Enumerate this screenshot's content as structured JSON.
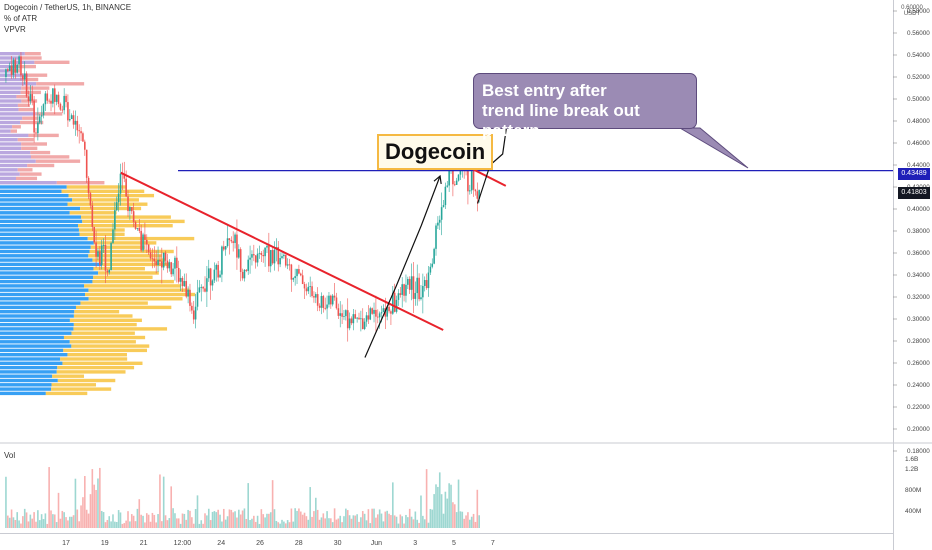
{
  "header": {
    "symbol_line": "Dogecoin / TetherUS, 1h, BINANCE",
    "indicator_1": "% of ATR",
    "indicator_2": "VPVR",
    "volume_label": "Vol"
  },
  "annotations": {
    "title_box": "Dogecoin",
    "callout": [
      "Best entry after",
      "trend line break out pattern"
    ]
  },
  "price_tags": {
    "level": "0.43489",
    "last": "0.41803"
  },
  "colors": {
    "up": "#26a69a",
    "down": "#ef5350",
    "horizontal_level": "#1f1fb8",
    "trend_line": "#e8232c",
    "vp_blue": "#2196f3",
    "vp_yellow": "#f7c23c",
    "vp_pink": "#ef9a9a",
    "vp_purple": "#b39ddb",
    "callout_bg": "#9b8bb4",
    "title_box_border": "#f5b942"
  },
  "chart_data": {
    "type": "candlestick",
    "title": "Dogecoin / TetherUS, 1h, BINANCE",
    "x_ticks": [
      "17",
      "19",
      "21",
      "12:00",
      "24",
      "26",
      "28",
      "30",
      "Jun",
      "3",
      "5",
      "7"
    ],
    "y_ticks": [
      "0.58000",
      "0.56000",
      "0.54000",
      "0.52000",
      "0.50000",
      "0.48000",
      "0.46000",
      "0.44000",
      "0.42000",
      "0.40000",
      "0.38000",
      "0.36000",
      "0.34000",
      "0.32000",
      "0.30000",
      "0.28000",
      "0.26000",
      "0.24000",
      "0.22000",
      "0.20000",
      "0.18000"
    ],
    "y_top_label": "USDT",
    "y_top_tick": "0.60000",
    "ylim": [
      0.18,
      0.6
    ],
    "volume_ticks": [
      "1.6B",
      "1.2B",
      "800M",
      "400M"
    ],
    "horizontal_level": 0.43489,
    "last_price": 0.41803,
    "price_path": [
      {
        "d": 0.0,
        "p": 0.52
      },
      {
        "d": 0.4,
        "p": 0.535
      },
      {
        "d": 0.8,
        "p": 0.5
      },
      {
        "d": 1.0,
        "p": 0.465
      },
      {
        "d": 1.3,
        "p": 0.505
      },
      {
        "d": 1.6,
        "p": 0.5
      },
      {
        "d": 1.9,
        "p": 0.495
      },
      {
        "d": 2.3,
        "p": 0.48
      },
      {
        "d": 2.5,
        "p": 0.46
      },
      {
        "d": 2.7,
        "p": 0.41
      },
      {
        "d": 2.9,
        "p": 0.35
      },
      {
        "d": 3.1,
        "p": 0.37
      },
      {
        "d": 3.3,
        "p": 0.34
      },
      {
        "d": 3.5,
        "p": 0.4
      },
      {
        "d": 3.7,
        "p": 0.432
      },
      {
        "d": 3.9,
        "p": 0.405
      },
      {
        "d": 4.1,
        "p": 0.39
      },
      {
        "d": 4.4,
        "p": 0.37
      },
      {
        "d": 4.7,
        "p": 0.35
      },
      {
        "d": 5.0,
        "p": 0.36
      },
      {
        "d": 5.4,
        "p": 0.345
      },
      {
        "d": 5.8,
        "p": 0.33
      },
      {
        "d": 6.0,
        "p": 0.305
      },
      {
        "d": 6.2,
        "p": 0.32
      },
      {
        "d": 6.5,
        "p": 0.345
      },
      {
        "d": 6.8,
        "p": 0.335
      },
      {
        "d": 7.0,
        "p": 0.37
      },
      {
        "d": 7.3,
        "p": 0.375
      },
      {
        "d": 7.6,
        "p": 0.345
      },
      {
        "d": 8.0,
        "p": 0.355
      },
      {
        "d": 8.5,
        "p": 0.36
      },
      {
        "d": 9.0,
        "p": 0.35
      },
      {
        "d": 9.5,
        "p": 0.335
      },
      {
        "d": 10.0,
        "p": 0.315
      },
      {
        "d": 10.5,
        "p": 0.315
      },
      {
        "d": 11.0,
        "p": 0.3
      },
      {
        "d": 11.4,
        "p": 0.298
      },
      {
        "d": 11.8,
        "p": 0.312
      },
      {
        "d": 12.1,
        "p": 0.304
      },
      {
        "d": 12.4,
        "p": 0.313
      },
      {
        "d": 12.7,
        "p": 0.325
      },
      {
        "d": 13.0,
        "p": 0.33
      },
      {
        "d": 13.3,
        "p": 0.322
      },
      {
        "d": 13.6,
        "p": 0.345
      },
      {
        "d": 13.8,
        "p": 0.38
      },
      {
        "d": 14.0,
        "p": 0.405
      },
      {
        "d": 14.2,
        "p": 0.44
      },
      {
        "d": 14.4,
        "p": 0.425
      },
      {
        "d": 14.6,
        "p": 0.432
      },
      {
        "d": 14.8,
        "p": 0.428
      },
      {
        "d": 15.0,
        "p": 0.42
      },
      {
        "d": 15.2,
        "p": 0.418
      }
    ],
    "trend_line_main": [
      {
        "d": 3.7,
        "p": 0.433
      },
      {
        "d": 14.0,
        "p": 0.29
      }
    ],
    "trend_line_short": [
      {
        "d": 14.2,
        "p": 0.447
      },
      {
        "d": 16.0,
        "p": 0.421
      }
    ],
    "drawn_arrows": [
      [
        {
          "d": 11.5,
          "p": 0.265
        },
        {
          "d": 12.5,
          "p": 0.33
        },
        {
          "d": 13.3,
          "p": 0.385
        },
        {
          "d": 13.9,
          "p": 0.43
        }
      ],
      [
        {
          "d": 15.1,
          "p": 0.405
        },
        {
          "d": 15.5,
          "p": 0.44
        },
        {
          "d": 15.9,
          "p": 0.45
        },
        {
          "d": 16.1,
          "p": 0.49
        },
        {
          "d": 16.4,
          "p": 0.515
        },
        {
          "d": 16.7,
          "p": 0.5
        }
      ]
    ]
  }
}
